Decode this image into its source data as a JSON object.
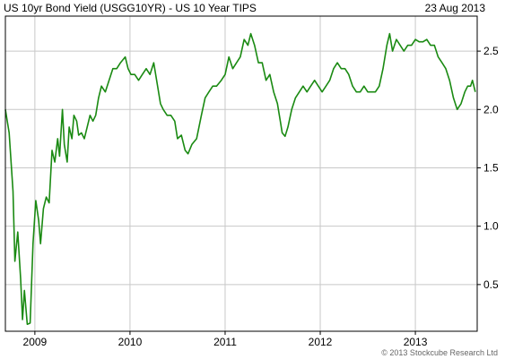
{
  "header": {
    "title": "US 10yr Bond Yield (USGG10YR) - US 10 Year TIPS",
    "date": "23 Aug 2013"
  },
  "footer": {
    "copyright": "© 2013 Stockcube Research Ltd"
  },
  "colors": {
    "line": "#1a8a12",
    "grid": "#c8c8c8",
    "border": "#000000"
  },
  "chart_data": {
    "type": "line",
    "title": "US 10yr Bond Yield (USGG10YR) - US 10 Year TIPS",
    "xlabel": "",
    "ylabel": "",
    "xlim": [
      2008.69,
      2013.65
    ],
    "ylim": [
      0.1,
      2.8
    ],
    "grid": true,
    "y_axis_side": "right",
    "x_ticks": [
      2009,
      2010,
      2011,
      2012,
      2013
    ],
    "y_ticks": [
      0.5,
      1.0,
      1.5,
      2.0,
      2.5
    ],
    "y_tick_labels": [
      "0.5",
      "1.0",
      "1.5",
      "2.0",
      "2.5"
    ],
    "series": [
      {
        "values": [
          [
            2008.69,
            2.0
          ],
          [
            2008.73,
            1.8
          ],
          [
            2008.77,
            1.3
          ],
          [
            2008.79,
            0.7
          ],
          [
            2008.82,
            0.95
          ],
          [
            2008.85,
            0.55
          ],
          [
            2008.87,
            0.2
          ],
          [
            2008.89,
            0.45
          ],
          [
            2008.92,
            0.16
          ],
          [
            2008.95,
            0.17
          ],
          [
            2008.98,
            0.85
          ],
          [
            2009.01,
            1.22
          ],
          [
            2009.04,
            1.05
          ],
          [
            2009.06,
            0.85
          ],
          [
            2009.09,
            1.15
          ],
          [
            2009.12,
            1.25
          ],
          [
            2009.15,
            1.2
          ],
          [
            2009.18,
            1.65
          ],
          [
            2009.21,
            1.55
          ],
          [
            2009.24,
            1.75
          ],
          [
            2009.26,
            1.6
          ],
          [
            2009.29,
            2.0
          ],
          [
            2009.31,
            1.7
          ],
          [
            2009.34,
            1.55
          ],
          [
            2009.36,
            1.85
          ],
          [
            2009.39,
            1.75
          ],
          [
            2009.41,
            1.95
          ],
          [
            2009.44,
            1.9
          ],
          [
            2009.46,
            1.78
          ],
          [
            2009.49,
            1.8
          ],
          [
            2009.52,
            1.75
          ],
          [
            2009.55,
            1.85
          ],
          [
            2009.58,
            1.95
          ],
          [
            2009.61,
            1.9
          ],
          [
            2009.64,
            1.95
          ],
          [
            2009.67,
            2.1
          ],
          [
            2009.7,
            2.2
          ],
          [
            2009.74,
            2.15
          ],
          [
            2009.78,
            2.25
          ],
          [
            2009.82,
            2.35
          ],
          [
            2009.86,
            2.35
          ],
          [
            2009.9,
            2.4
          ],
          [
            2009.95,
            2.45
          ],
          [
            2009.98,
            2.35
          ],
          [
            2010.01,
            2.3
          ],
          [
            2010.05,
            2.3
          ],
          [
            2010.09,
            2.25
          ],
          [
            2010.13,
            2.3
          ],
          [
            2010.17,
            2.35
          ],
          [
            2010.21,
            2.3
          ],
          [
            2010.25,
            2.4
          ],
          [
            2010.29,
            2.2
          ],
          [
            2010.32,
            2.05
          ],
          [
            2010.35,
            2.0
          ],
          [
            2010.39,
            1.95
          ],
          [
            2010.43,
            1.95
          ],
          [
            2010.47,
            1.9
          ],
          [
            2010.5,
            1.75
          ],
          [
            2010.54,
            1.78
          ],
          [
            2010.58,
            1.65
          ],
          [
            2010.61,
            1.62
          ],
          [
            2010.65,
            1.7
          ],
          [
            2010.7,
            1.75
          ],
          [
            2010.75,
            1.95
          ],
          [
            2010.79,
            2.1
          ],
          [
            2010.83,
            2.15
          ],
          [
            2010.87,
            2.2
          ],
          [
            2010.91,
            2.2
          ],
          [
            2010.96,
            2.25
          ],
          [
            2011.0,
            2.3
          ],
          [
            2011.04,
            2.45
          ],
          [
            2011.08,
            2.35
          ],
          [
            2011.12,
            2.4
          ],
          [
            2011.16,
            2.45
          ],
          [
            2011.2,
            2.6
          ],
          [
            2011.24,
            2.55
          ],
          [
            2011.27,
            2.65
          ],
          [
            2011.31,
            2.55
          ],
          [
            2011.35,
            2.4
          ],
          [
            2011.39,
            2.4
          ],
          [
            2011.43,
            2.25
          ],
          [
            2011.47,
            2.3
          ],
          [
            2011.51,
            2.15
          ],
          [
            2011.55,
            2.05
          ],
          [
            2011.58,
            1.9
          ],
          [
            2011.6,
            1.8
          ],
          [
            2011.63,
            1.77
          ],
          [
            2011.66,
            1.85
          ],
          [
            2011.7,
            2.0
          ],
          [
            2011.74,
            2.1
          ],
          [
            2011.78,
            2.15
          ],
          [
            2011.82,
            2.2
          ],
          [
            2011.86,
            2.15
          ],
          [
            2011.9,
            2.2
          ],
          [
            2011.94,
            2.25
          ],
          [
            2011.98,
            2.2
          ],
          [
            2012.02,
            2.15
          ],
          [
            2012.06,
            2.2
          ],
          [
            2012.1,
            2.25
          ],
          [
            2012.14,
            2.35
          ],
          [
            2012.18,
            2.4
          ],
          [
            2012.22,
            2.35
          ],
          [
            2012.26,
            2.35
          ],
          [
            2012.3,
            2.3
          ],
          [
            2012.34,
            2.2
          ],
          [
            2012.38,
            2.15
          ],
          [
            2012.42,
            2.15
          ],
          [
            2012.46,
            2.2
          ],
          [
            2012.5,
            2.15
          ],
          [
            2012.54,
            2.15
          ],
          [
            2012.58,
            2.15
          ],
          [
            2012.62,
            2.2
          ],
          [
            2012.66,
            2.35
          ],
          [
            2012.7,
            2.55
          ],
          [
            2012.73,
            2.65
          ],
          [
            2012.76,
            2.5
          ],
          [
            2012.8,
            2.6
          ],
          [
            2012.84,
            2.55
          ],
          [
            2012.88,
            2.5
          ],
          [
            2012.92,
            2.55
          ],
          [
            2012.96,
            2.55
          ],
          [
            2013.0,
            2.6
          ],
          [
            2013.04,
            2.58
          ],
          [
            2013.08,
            2.58
          ],
          [
            2013.12,
            2.6
          ],
          [
            2013.16,
            2.55
          ],
          [
            2013.2,
            2.55
          ],
          [
            2013.24,
            2.45
          ],
          [
            2013.28,
            2.4
          ],
          [
            2013.32,
            2.35
          ],
          [
            2013.36,
            2.25
          ],
          [
            2013.4,
            2.1
          ],
          [
            2013.44,
            2.0
          ],
          [
            2013.48,
            2.05
          ],
          [
            2013.52,
            2.15
          ],
          [
            2013.55,
            2.2
          ],
          [
            2013.58,
            2.2
          ],
          [
            2013.6,
            2.25
          ],
          [
            2013.63,
            2.15
          ]
        ]
      }
    ]
  }
}
